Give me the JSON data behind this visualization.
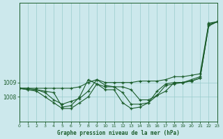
{
  "title": "Graphe pression niveau de la mer (hPa)",
  "background_color": "#cce8ec",
  "grid_color": "#99cccc",
  "line_color": "#1a5c2a",
  "xlim": [
    0,
    23
  ],
  "ylim": [
    1006.3,
    1014.5
  ],
  "yticks": [
    1008,
    1009
  ],
  "xticks": [
    0,
    1,
    2,
    3,
    4,
    5,
    6,
    7,
    8,
    9,
    10,
    11,
    12,
    13,
    14,
    15,
    16,
    17,
    18,
    19,
    20,
    21,
    22,
    23
  ],
  "series": [
    [
      1008.6,
      1008.6,
      1008.6,
      1008.6,
      1008.6,
      1008.6,
      1008.6,
      1008.7,
      1009.0,
      1009.2,
      1009.0,
      1009.0,
      1009.0,
      1009.0,
      1009.1,
      1009.1,
      1009.1,
      1009.2,
      1009.4,
      1009.4,
      1009.5,
      1009.6,
      1013.1,
      1013.2
    ],
    [
      1008.6,
      1008.6,
      1008.5,
      1008.3,
      1007.8,
      1007.5,
      1007.7,
      1007.9,
      1008.4,
      1009.2,
      1008.8,
      1008.7,
      1008.7,
      1008.5,
      1007.8,
      1007.8,
      1008.1,
      1008.4,
      1009.0,
      1009.0,
      1009.2,
      1009.4,
      1013.0,
      1013.2
    ],
    [
      1008.6,
      1008.5,
      1008.5,
      1008.4,
      1008.3,
      1007.3,
      1007.4,
      1008.0,
      1009.2,
      1008.9,
      1008.7,
      1008.7,
      1008.3,
      1007.5,
      1007.5,
      1007.6,
      1008.4,
      1008.9,
      1009.0,
      1009.0,
      1009.1,
      1009.3,
      1013.0,
      1013.2
    ],
    [
      1008.6,
      1008.5,
      1008.4,
      1008.0,
      1007.6,
      1007.2,
      1007.2,
      1007.6,
      1008.0,
      1008.9,
      1008.5,
      1008.5,
      1007.6,
      1007.2,
      1007.3,
      1007.6,
      1008.1,
      1008.8,
      1008.9,
      1009.0,
      1009.1,
      1009.3,
      1012.9,
      1013.2
    ]
  ]
}
